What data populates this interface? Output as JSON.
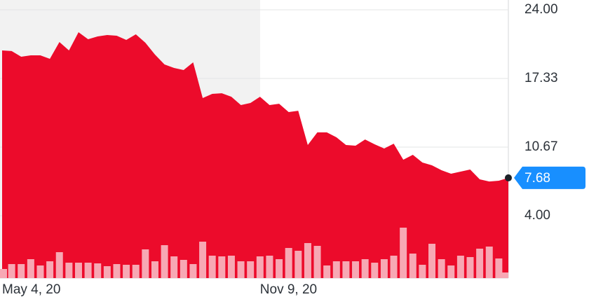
{
  "chart_data": {
    "type": "area",
    "categories": [
      "May 4, 20",
      null,
      null,
      null,
      null,
      null,
      null,
      null,
      null,
      null,
      null,
      null,
      null,
      null,
      null,
      null,
      null,
      null,
      null,
      null,
      null,
      null,
      null,
      null,
      null,
      null,
      null,
      "Nov 9, 20",
      null,
      null,
      null,
      null,
      null,
      null,
      null,
      null,
      null,
      null,
      null,
      null,
      null,
      null,
      null,
      null,
      null,
      null,
      null,
      null,
      null,
      null,
      null,
      null,
      null,
      null
    ],
    "series": [
      {
        "color": "#ec0b2b",
        "values": [
          20.05,
          19.99,
          19.44,
          19.58,
          19.58,
          19.24,
          20.87,
          20.05,
          21.82,
          21.14,
          21.41,
          21.55,
          21.48,
          21.07,
          21.62,
          20.8,
          19.65,
          18.69,
          18.35,
          18.15,
          18.9,
          15.43,
          15.84,
          15.9,
          15.56,
          14.75,
          14.95,
          15.56,
          14.75,
          14.88,
          14.07,
          14.2,
          10.87,
          12.1,
          12.1,
          11.62,
          10.87,
          10.8,
          11.41,
          10.94,
          10.53,
          11.0,
          9.44,
          9.92,
          9.17,
          8.9,
          8.42,
          8.08,
          8.29,
          8.49,
          7.54,
          7.33,
          7.4,
          7.68
        ]
      },
      {
        "type": "bar",
        "axis": "y2",
        "color": "#f7a8b4",
        "values": [
          13,
          20,
          20,
          27,
          18,
          24,
          37,
          22,
          22,
          22,
          21,
          17,
          20,
          19,
          19,
          41,
          24,
          47,
          31,
          26,
          20,
          52,
          32,
          31,
          32,
          24,
          24,
          31,
          32,
          27,
          43,
          39,
          50,
          46,
          18,
          24,
          24,
          24,
          27,
          22,
          27,
          32,
          72,
          35,
          19,
          49,
          27,
          18,
          32,
          30,
          42,
          45,
          28,
          8
        ]
      }
    ],
    "ylim": [
      -2.05,
      24.95
    ],
    "yticks": [
      {
        "value": 24,
        "label": "24.00"
      },
      {
        "value": 17.33,
        "label": "17.33"
      },
      {
        "value": 10.67,
        "label": "10.67"
      },
      {
        "value": 4,
        "label": "4.00"
      }
    ],
    "y2lim": [
      0,
      100
    ],
    "grid": true
  }
}
